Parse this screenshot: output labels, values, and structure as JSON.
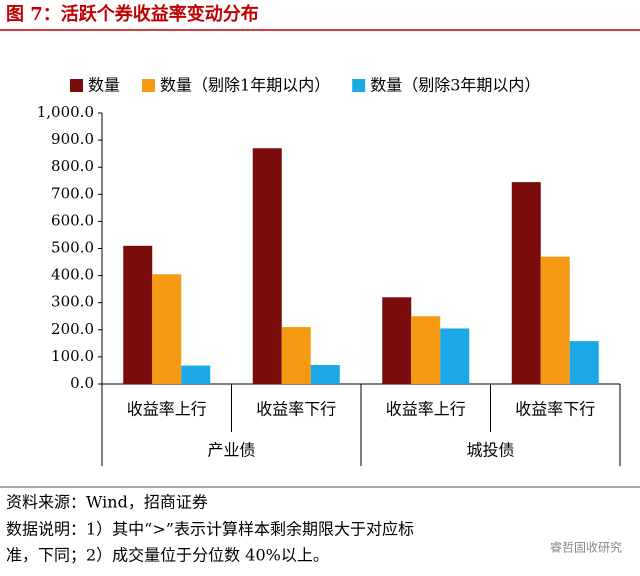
{
  "chart_data": {
    "type": "bar",
    "title": "图 7：活跃个券收益率变动分布",
    "categories": [
      "收益率上行",
      "收益率下行",
      "收益率上行",
      "收益率下行"
    ],
    "group_labels": [
      "产业债",
      "城投债"
    ],
    "series": [
      {
        "name": "数量",
        "color": "#7b0c0c",
        "values": [
          510,
          870,
          320,
          745
        ]
      },
      {
        "name": "数量（剔除1年期以内）",
        "color": "#f59a12",
        "values": [
          405,
          210,
          250,
          470
        ]
      },
      {
        "name": "数量（剔除3年期以内）",
        "color": "#1aa8e6",
        "values": [
          68,
          70,
          205,
          158
        ]
      }
    ],
    "ylim": [
      0,
      1000
    ],
    "yticks": [
      {
        "value": 0,
        "label": "0.0"
      },
      {
        "value": 100,
        "label": "100.0"
      },
      {
        "value": 200,
        "label": "200.0"
      },
      {
        "value": 300,
        "label": "300.0"
      },
      {
        "value": 400,
        "label": "400.0"
      },
      {
        "value": 500,
        "label": "500.0"
      },
      {
        "value": 600,
        "label": "600.0"
      },
      {
        "value": 700,
        "label": "700.0"
      },
      {
        "value": 800,
        "label": "800.0"
      },
      {
        "value": 900,
        "label": "900.0"
      },
      {
        "value": 1000,
        "label": "1,000.0"
      }
    ],
    "grid": false,
    "legend": "top",
    "source": "资料来源：Wind，招商证券",
    "notes": [
      "数据说明：1）其中“>”表示计算样本剩余期限大于对应标",
      "准，下同；2）成交量位于分位数 40%以上。"
    ],
    "watermark": "睿哲固收研究"
  }
}
